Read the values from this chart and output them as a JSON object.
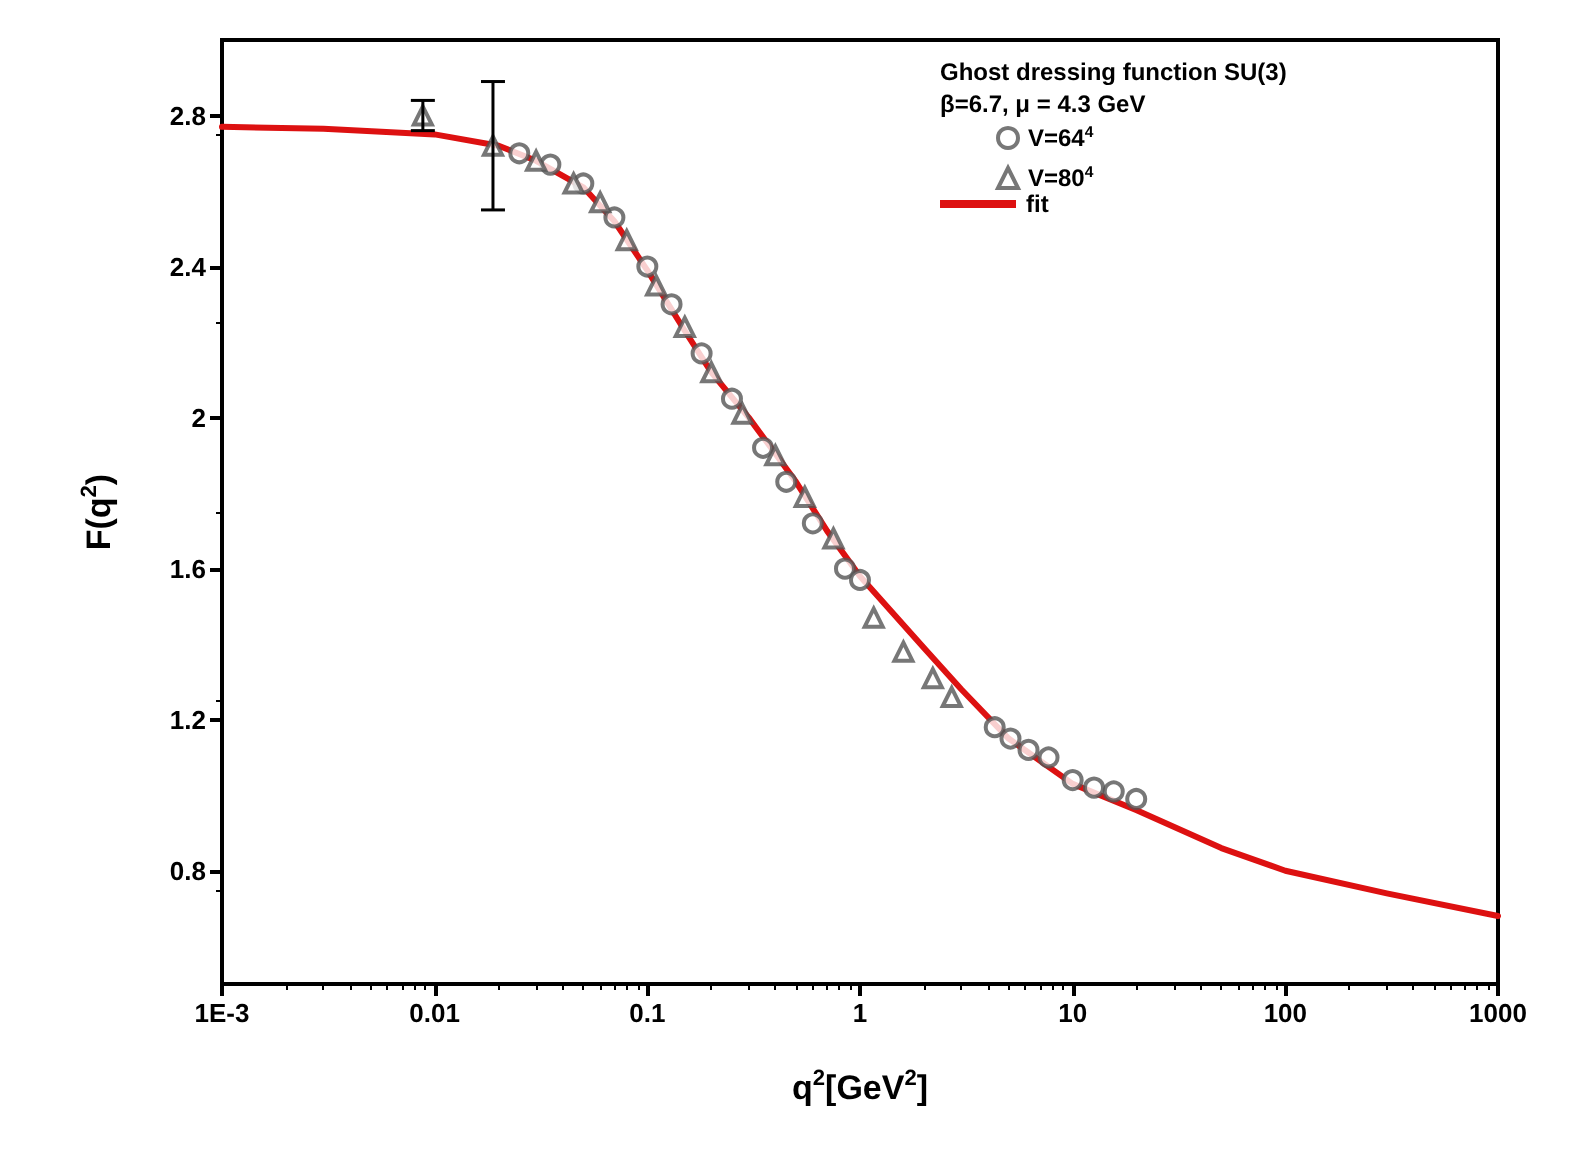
{
  "chart_data": {
    "type": "scatter",
    "xlabel": "q$^{2}$[GeV$^{2}$]",
    "ylabel": "F(q$^{2}$)",
    "legend_title": "Ghost dressing function SU(3)\nβ=6.7, μ = 4.3 GeV",
    "log": "x",
    "xlim": [
      0.001,
      1000
    ],
    "xticks": [
      {
        "value": 0.001,
        "label": "1E-3"
      },
      0.01,
      0.1,
      1,
      10,
      100,
      1000
    ],
    "ylim": [
      0.5,
      3.0
    ],
    "yticks": [
      0.8,
      1.2,
      1.6,
      2.0,
      2.4,
      2.8
    ],
    "grid": false,
    "legend": "top right",
    "series": [
      {
        "name": "V=64$^{4}$",
        "marker": "circle",
        "color": "#555555",
        "x": [
          0.025,
          0.035,
          0.05,
          0.07,
          0.1,
          0.13,
          0.18,
          0.25,
          0.35,
          0.45,
          0.6,
          0.85,
          1.0,
          4.3,
          5.1,
          6.2,
          7.7,
          10,
          12.6,
          15.6,
          19.9
        ],
        "values": [
          2.7,
          2.67,
          2.62,
          2.53,
          2.4,
          2.3,
          2.17,
          2.05,
          1.92,
          1.83,
          1.72,
          1.6,
          1.57,
          1.18,
          1.15,
          1.12,
          1.1,
          1.04,
          1.02,
          1.01,
          0.99
        ]
      },
      {
        "name": "V=80$^{4}$",
        "marker": "triangle",
        "color": "#555555",
        "x": [
          0.0088,
          0.0188,
          0.03,
          0.045,
          0.06,
          0.08,
          0.11,
          0.15,
          0.2,
          0.28,
          0.4,
          0.55,
          0.75,
          1.16,
          1.6,
          2.2,
          2.7
        ],
        "values": [
          2.8,
          2.72,
          2.68,
          2.62,
          2.57,
          2.47,
          2.35,
          2.24,
          2.12,
          2.01,
          1.9,
          1.79,
          1.68,
          1.47,
          1.38,
          1.31,
          1.26
        ],
        "errors": [
          [
            2.76,
            2.84
          ],
          [
            2.55,
            2.89
          ],
          null,
          null,
          null,
          null,
          null,
          null,
          null,
          null,
          null,
          null,
          null,
          null,
          null,
          null,
          null
        ]
      },
      {
        "name": "fit",
        "type": "line",
        "marker": "none",
        "color": "#dd1111",
        "x": [
          0.001,
          0.003,
          0.01,
          0.02,
          0.03,
          0.05,
          0.07,
          0.1,
          0.15,
          0.2,
          0.3,
          0.5,
          0.7,
          1,
          2,
          3,
          5,
          10,
          20,
          50,
          100,
          300,
          1000
        ],
        "values": [
          2.77,
          2.765,
          2.75,
          2.72,
          2.68,
          2.61,
          2.52,
          2.39,
          2.23,
          2.12,
          2.0,
          1.83,
          1.7,
          1.58,
          1.39,
          1.28,
          1.15,
          1.03,
          0.96,
          0.86,
          0.8,
          0.74,
          0.68
        ]
      }
    ]
  }
}
